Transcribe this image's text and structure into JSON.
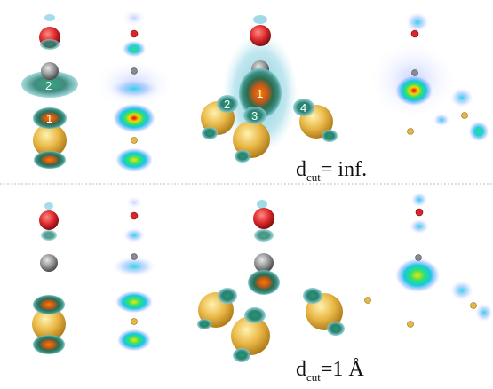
{
  "panels": {
    "top": {
      "label_main": "d",
      "label_sub": "cut",
      "label_value": "= inf.",
      "isosurface_numbers": [
        "2",
        "1",
        "2",
        "1",
        "3",
        "4"
      ]
    },
    "bottom": {
      "label_main": "d",
      "label_sub": "cut",
      "label_value": "=1 Å"
    }
  },
  "colors": {
    "oxygen": "#d8262a",
    "carbon": "#8a8a8a",
    "metal": "#e8b845",
    "iso_dark": "#1e6f68",
    "iso_light": "#7fc4c9",
    "divider": "#bdbdbd"
  }
}
